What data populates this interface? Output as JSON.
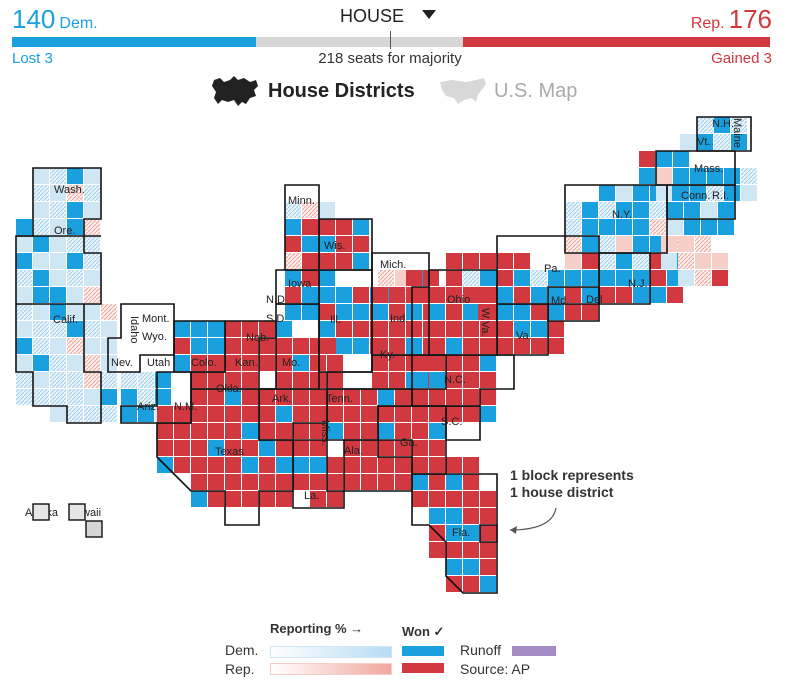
{
  "header": {
    "dem_count": "140",
    "dem_label": "Dem.",
    "rep_count": "176",
    "rep_label": "Rep.",
    "chamber": "HOUSE",
    "majority_text": "218 seats for majority",
    "dem_change": "Lost 3",
    "rep_change": "Gained 3"
  },
  "seat_totals": {
    "dem": 140,
    "rep": 176,
    "total": 435,
    "majority": 218
  },
  "view_toggle": {
    "districts_label": "House Districts",
    "map_label": "U.S. Map",
    "active": "districts"
  },
  "state_labels": [
    {
      "id": "wa",
      "text": "Wash."
    },
    {
      "id": "or",
      "text": "Ore."
    },
    {
      "id": "ca",
      "text": "Calif."
    },
    {
      "id": "id",
      "text": "Idaho"
    },
    {
      "id": "mt",
      "text": "Mont."
    },
    {
      "id": "wy",
      "text": "Wyo."
    },
    {
      "id": "nv",
      "text": "Nev."
    },
    {
      "id": "ut",
      "text": "Utah"
    },
    {
      "id": "co",
      "text": "Colo."
    },
    {
      "id": "az",
      "text": "Ariz."
    },
    {
      "id": "nm",
      "text": "N.M."
    },
    {
      "id": "nd",
      "text": "N.D"
    },
    {
      "id": "sd",
      "text": "S.D"
    },
    {
      "id": "ne",
      "text": "Neb."
    },
    {
      "id": "ks",
      "text": "Kan."
    },
    {
      "id": "ok",
      "text": "Okla."
    },
    {
      "id": "tx",
      "text": "Texas"
    },
    {
      "id": "mn",
      "text": "Minn."
    },
    {
      "id": "ia",
      "text": "Iowa"
    },
    {
      "id": "mo",
      "text": "Mo."
    },
    {
      "id": "ar",
      "text": "Ark."
    },
    {
      "id": "la",
      "text": "La."
    },
    {
      "id": "wi",
      "text": "Wis."
    },
    {
      "id": "il",
      "text": "Ill."
    },
    {
      "id": "ms",
      "text": "Miss."
    },
    {
      "id": "mi",
      "text": "Mich."
    },
    {
      "id": "in",
      "text": "Ind."
    },
    {
      "id": "ky",
      "text": "Ky."
    },
    {
      "id": "tn",
      "text": "Tenn."
    },
    {
      "id": "al",
      "text": "Ala."
    },
    {
      "id": "oh",
      "text": "Ohio"
    },
    {
      "id": "wv",
      "text": "W.Va."
    },
    {
      "id": "ga",
      "text": "Ga."
    },
    {
      "id": "fl",
      "text": "Fla."
    },
    {
      "id": "sc",
      "text": "S.C."
    },
    {
      "id": "nc",
      "text": "N.C."
    },
    {
      "id": "va",
      "text": "Va."
    },
    {
      "id": "pa",
      "text": "Pa."
    },
    {
      "id": "md",
      "text": "Md."
    },
    {
      "id": "de",
      "text": "Del"
    },
    {
      "id": "nj",
      "text": "N.J."
    },
    {
      "id": "ny",
      "text": "N.Y."
    },
    {
      "id": "ct",
      "text": "Conn."
    },
    {
      "id": "ri",
      "text": "R.I."
    },
    {
      "id": "ma",
      "text": "Mass."
    },
    {
      "id": "vt",
      "text": "Vt."
    },
    {
      "id": "nh",
      "text": "N.H."
    },
    {
      "id": "me",
      "text": "Maine"
    },
    {
      "id": "ak",
      "text": "Alaska"
    },
    {
      "id": "hi",
      "text": "Hawaii"
    }
  ],
  "annotation": {
    "line1": "1 block represents",
    "line2": "1 house district"
  },
  "legend": {
    "reporting_label": "Reporting % →",
    "won_label": "Won ✓",
    "dem_label": "Dem.",
    "rep_label": "Rep.",
    "runoff_label": "Runoff",
    "source_label": "Source: AP"
  },
  "colors": {
    "dem": "#1a9fdf",
    "rep": "#d1383f",
    "runoff": "#a58bc6",
    "dem_light": "#cfe6f5",
    "rep_light": "#f5cfc8",
    "gray": "#d6d6d6"
  }
}
